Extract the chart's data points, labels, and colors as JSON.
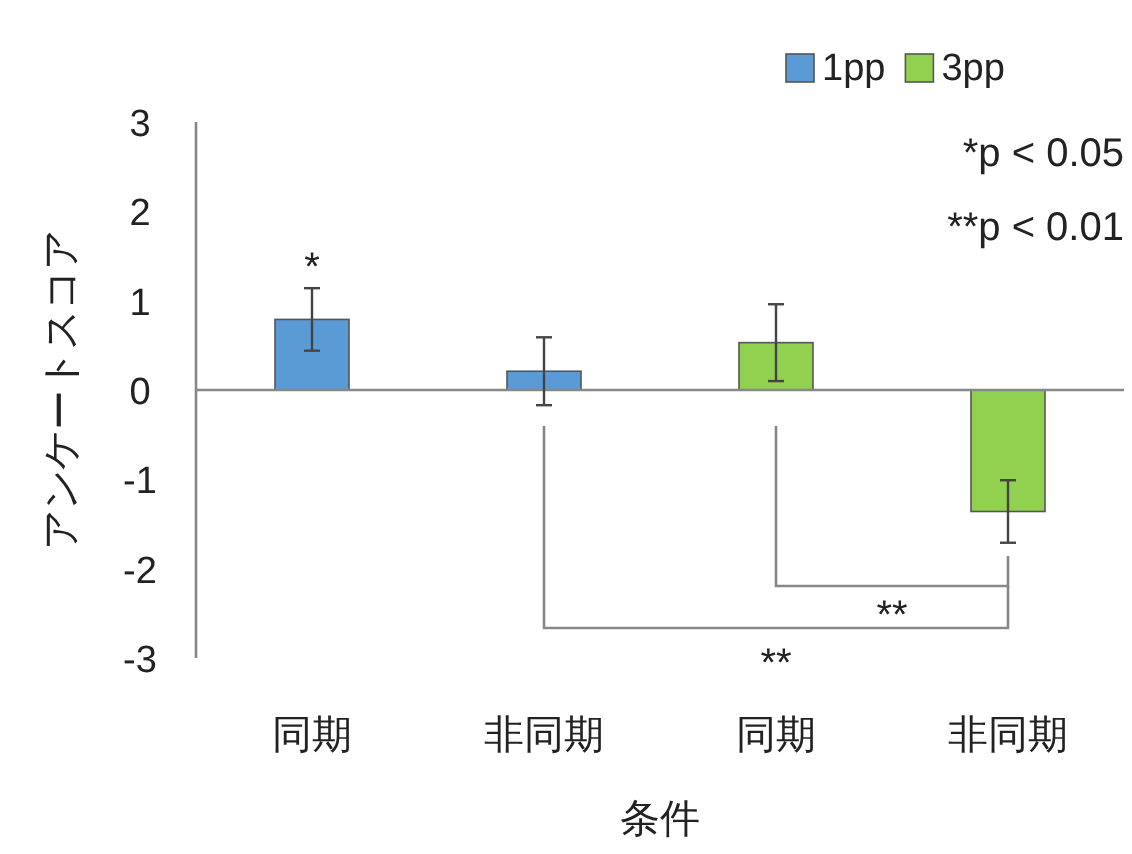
{
  "chart_data": {
    "type": "bar",
    "ylabel": "アンケートスコア",
    "xlabel": "条件",
    "categories": [
      "同期",
      "非同期",
      "同期",
      "非同期"
    ],
    "series": [
      {
        "name": "1pp",
        "color": "#5b9bd5",
        "values": [
          0.79,
          0.21,
          null,
          null
        ],
        "errors": [
          0.35,
          0.38,
          null,
          null
        ]
      },
      {
        "name": "3pp",
        "color": "#92d050",
        "values": [
          null,
          null,
          0.53,
          -1.36
        ],
        "errors": [
          null,
          null,
          0.43,
          0.35
        ]
      }
    ],
    "ylim": [
      -3,
      3
    ],
    "yticks": [
      -3,
      -2,
      -1,
      0,
      1,
      2,
      3
    ],
    "legend": "top right",
    "annotations": [
      "*",
      "**",
      "**",
      "*p < 0.05",
      "**p < 0.01"
    ]
  }
}
